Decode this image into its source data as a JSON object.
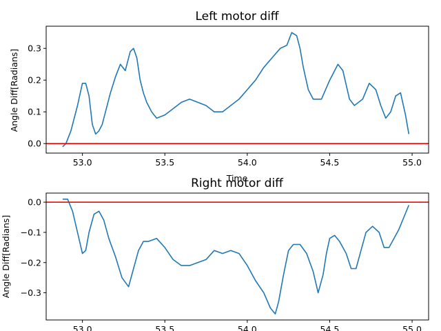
{
  "chart_data": [
    {
      "type": "line",
      "title": "Left motor diff",
      "xlabel": "Time",
      "ylabel": "Angle Diff[Radians]",
      "xlim": [
        52.78,
        55.1
      ],
      "ylim": [
        -0.03,
        0.37
      ],
      "xticks": [
        53.0,
        53.5,
        54.0,
        54.5,
        55.0
      ],
      "xtick_labels": [
        "53.0",
        "53.5",
        "54.0",
        "54.5",
        "55.0"
      ],
      "yticks": [
        0.0,
        0.1,
        0.2,
        0.3
      ],
      "ytick_labels": [
        "0.0",
        "0.1",
        "0.2",
        "0.3"
      ],
      "hline": {
        "y": 0.0,
        "color": "#ff0000"
      },
      "line_color": "#1f77b4",
      "grid": false,
      "series": [
        {
          "x": [
            52.88,
            52.9,
            52.93,
            52.97,
            53.0,
            53.02,
            53.04,
            53.06,
            53.08,
            53.1,
            53.12,
            53.14,
            53.17,
            53.2,
            53.23,
            53.26,
            53.29,
            53.31,
            53.33,
            53.35,
            53.37,
            53.39,
            53.42,
            53.45,
            53.5,
            53.55,
            53.6,
            53.65,
            53.7,
            53.75,
            53.8,
            53.85,
            53.9,
            53.95,
            54.0,
            54.05,
            54.1,
            54.15,
            54.2,
            54.24,
            54.27,
            54.3,
            54.32,
            54.34,
            54.37,
            54.4,
            54.45,
            54.5,
            54.55,
            54.58,
            54.62,
            54.65,
            54.7,
            54.74,
            54.78,
            54.81,
            54.84,
            54.87,
            54.9,
            54.93,
            54.96,
            54.98
          ],
          "y": [
            -0.01,
            0.0,
            0.04,
            0.12,
            0.19,
            0.19,
            0.15,
            0.06,
            0.03,
            0.04,
            0.06,
            0.1,
            0.16,
            0.21,
            0.25,
            0.23,
            0.29,
            0.3,
            0.27,
            0.2,
            0.16,
            0.13,
            0.1,
            0.08,
            0.09,
            0.11,
            0.13,
            0.14,
            0.13,
            0.12,
            0.1,
            0.1,
            0.12,
            0.14,
            0.17,
            0.2,
            0.24,
            0.27,
            0.3,
            0.31,
            0.35,
            0.34,
            0.3,
            0.24,
            0.17,
            0.14,
            0.14,
            0.2,
            0.25,
            0.23,
            0.14,
            0.12,
            0.14,
            0.19,
            0.17,
            0.12,
            0.08,
            0.1,
            0.15,
            0.16,
            0.09,
            0.03
          ]
        }
      ]
    },
    {
      "type": "line",
      "title": "Right motor diff",
      "xlabel": "",
      "ylabel": "Angle Diff[Radians]",
      "xlim": [
        52.78,
        55.1
      ],
      "ylim": [
        -0.39,
        0.03
      ],
      "xticks": [
        53.0,
        53.5,
        54.0,
        54.5,
        55.0
      ],
      "xtick_labels": [
        "53.0",
        "53.5",
        "54.0",
        "54.5",
        "55.0"
      ],
      "yticks": [
        0.0,
        -0.1,
        -0.2,
        -0.3
      ],
      "ytick_labels": [
        "0.0",
        "−0.1",
        "−0.2",
        "−0.3"
      ],
      "hline": {
        "y": 0.0,
        "color": "#ff0000"
      },
      "line_color": "#1f77b4",
      "grid": false,
      "series": [
        {
          "x": [
            52.88,
            52.91,
            52.94,
            52.97,
            53.0,
            53.02,
            53.04,
            53.07,
            53.1,
            53.13,
            53.16,
            53.2,
            53.24,
            53.28,
            53.31,
            53.34,
            53.37,
            53.4,
            53.45,
            53.5,
            53.55,
            53.6,
            53.65,
            53.7,
            53.75,
            53.8,
            53.85,
            53.9,
            53.95,
            54.0,
            54.05,
            54.1,
            54.14,
            54.17,
            54.19,
            54.22,
            54.25,
            54.28,
            54.32,
            54.36,
            54.4,
            54.43,
            54.46,
            54.48,
            54.5,
            54.53,
            54.56,
            54.6,
            54.63,
            54.66,
            54.69,
            54.72,
            54.76,
            54.8,
            54.83,
            54.86,
            54.89,
            54.92,
            54.95,
            54.98
          ],
          "y": [
            0.01,
            0.01,
            -0.03,
            -0.1,
            -0.17,
            -0.16,
            -0.1,
            -0.04,
            -0.03,
            -0.06,
            -0.12,
            -0.18,
            -0.25,
            -0.28,
            -0.22,
            -0.16,
            -0.13,
            -0.13,
            -0.12,
            -0.15,
            -0.19,
            -0.21,
            -0.21,
            -0.2,
            -0.19,
            -0.16,
            -0.17,
            -0.16,
            -0.17,
            -0.21,
            -0.26,
            -0.3,
            -0.35,
            -0.37,
            -0.33,
            -0.24,
            -0.16,
            -0.14,
            -0.14,
            -0.17,
            -0.23,
            -0.3,
            -0.24,
            -0.17,
            -0.12,
            -0.11,
            -0.13,
            -0.17,
            -0.22,
            -0.22,
            -0.16,
            -0.1,
            -0.08,
            -0.1,
            -0.15,
            -0.15,
            -0.12,
            -0.09,
            -0.05,
            -0.01
          ]
        }
      ]
    }
  ]
}
